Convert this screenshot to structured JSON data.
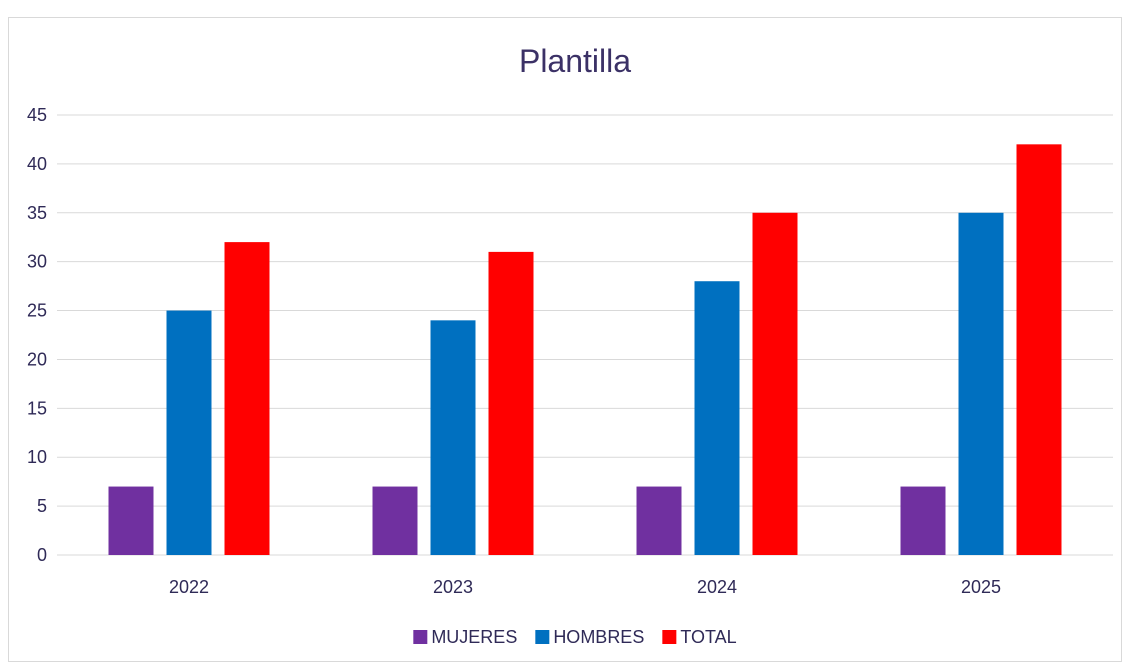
{
  "chart_data": {
    "type": "bar",
    "title": "Plantilla",
    "xlabel": "",
    "ylabel": "",
    "categories": [
      "2022",
      "2023",
      "2024",
      "2025"
    ],
    "series": [
      {
        "name": "MUJERES",
        "values": [
          7,
          7,
          7,
          7
        ],
        "color": "#7030a0"
      },
      {
        "name": "HOMBRES",
        "values": [
          25,
          24,
          28,
          35
        ],
        "color": "#0070c0"
      },
      {
        "name": "TOTAL",
        "values": [
          32,
          31,
          35,
          42
        ],
        "color": "#ff0000"
      }
    ],
    "ylim": [
      0,
      45
    ],
    "yticks": [
      0,
      5,
      10,
      15,
      20,
      25,
      30,
      35,
      40,
      45
    ],
    "grid": true,
    "legend_position": "bottom",
    "gridline_color": "#d9d9d9"
  }
}
